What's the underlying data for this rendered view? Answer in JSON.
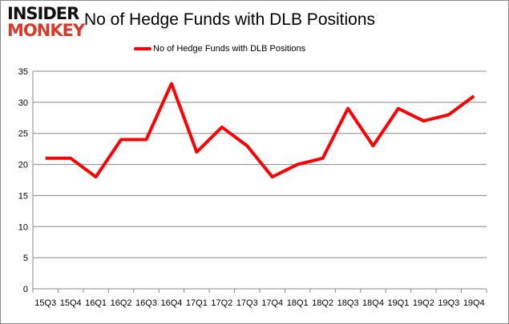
{
  "logo": {
    "line1": "INSIDER",
    "line2": "MONKEY"
  },
  "chart_data": {
    "type": "line",
    "title": "No of Hedge Funds with DLB Positions",
    "xlabel": "",
    "ylabel": "",
    "categories": [
      "15Q3",
      "15Q4",
      "16Q1",
      "16Q2",
      "16Q3",
      "16Q4",
      "17Q1",
      "17Q2",
      "17Q3",
      "17Q4",
      "18Q1",
      "18Q2",
      "18Q3",
      "18Q4",
      "19Q1",
      "19Q2",
      "19Q3",
      "19Q4"
    ],
    "series": [
      {
        "name": "No of Hedge Funds with DLB Positions",
        "color": "#ff0000",
        "values": [
          21,
          21,
          18,
          24,
          24,
          33,
          22,
          26,
          23,
          18,
          20,
          21,
          29,
          23,
          29,
          27,
          28,
          31
        ]
      }
    ],
    "ylim": [
      0,
      35
    ],
    "yticks": [
      0,
      5,
      10,
      15,
      20,
      25,
      30,
      35
    ],
    "grid": true,
    "legend": "top-center"
  }
}
